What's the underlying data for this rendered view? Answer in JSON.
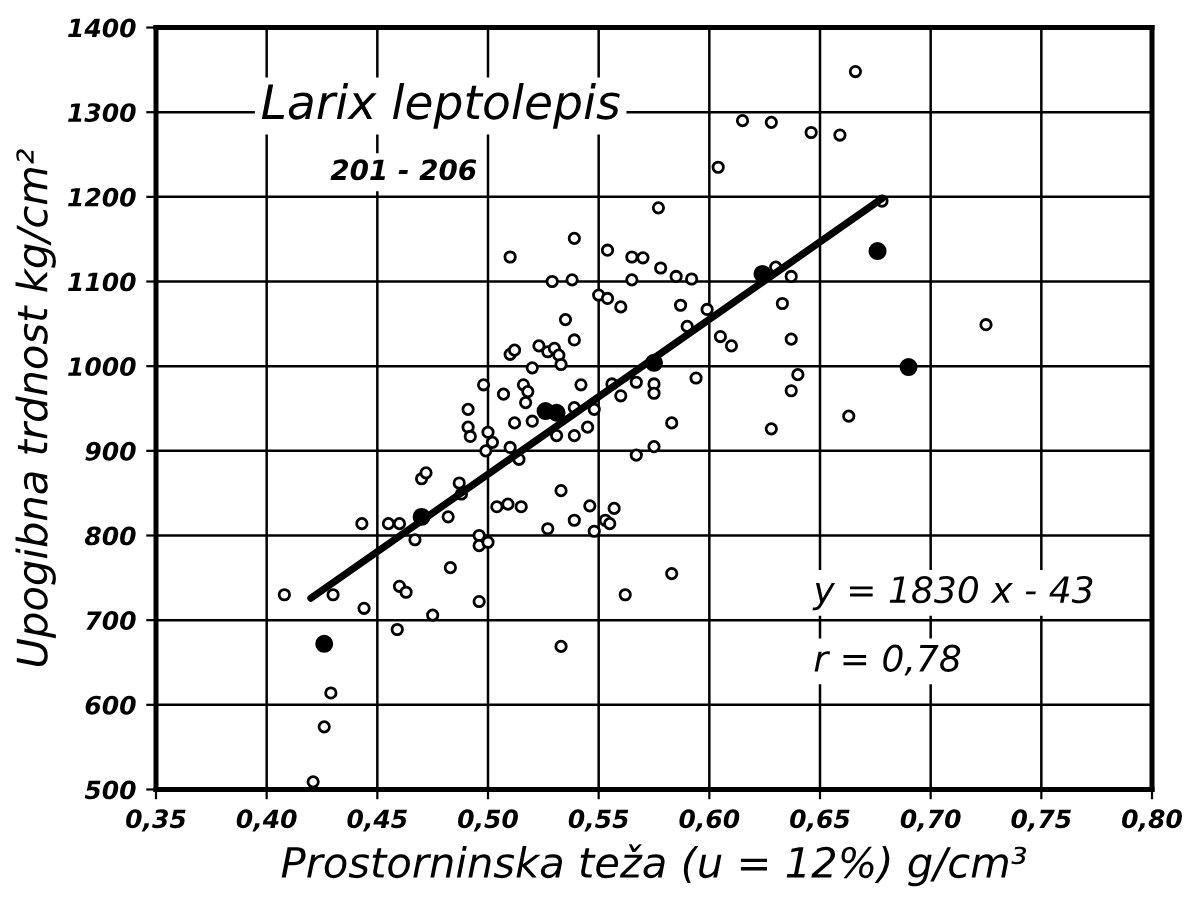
{
  "chart_data": {
    "type": "scatter",
    "xlabel": "Prostorninska teža (u = 12%) g/cm³",
    "ylabel": "Upogibna trdnost kg/cm²",
    "annotations": [
      "Larix leptolepis",
      "201 - 206",
      "y = 1830 x - 43",
      "r = 0,78"
    ],
    "xlim": [
      0.35,
      0.8
    ],
    "ylim": [
      500,
      1400
    ],
    "xticks": [
      {
        "value": 0.35,
        "label": "0,35"
      },
      {
        "value": 0.4,
        "label": "0,40"
      },
      {
        "value": 0.45,
        "label": "0,45"
      },
      {
        "value": 0.5,
        "label": "0,50"
      },
      {
        "value": 0.55,
        "label": "0,55"
      },
      {
        "value": 0.6,
        "label": "0,60"
      },
      {
        "value": 0.65,
        "label": "0,65"
      },
      {
        "value": 0.7,
        "label": "0,70"
      },
      {
        "value": 0.75,
        "label": "0,75"
      },
      {
        "value": 0.8,
        "label": "0,80"
      }
    ],
    "yticks": [
      500,
      600,
      700,
      800,
      900,
      1000,
      1100,
      1200,
      1300,
      1400
    ],
    "grid": true,
    "series": [
      {
        "marker": "circle",
        "color": "#ffffff",
        "x": [
          0.51,
          0.539,
          0.529,
          0.538,
          0.535,
          0.539,
          0.523,
          0.527,
          0.53,
          0.532,
          0.533,
          0.51,
          0.512,
          0.52,
          0.498,
          0.507,
          0.516,
          0.518,
          0.517,
          0.542,
          0.539,
          0.545,
          0.539,
          0.531,
          0.52,
          0.512,
          0.491,
          0.491,
          0.492,
          0.5,
          0.502,
          0.499,
          0.51,
          0.514,
          0.47,
          0.472,
          0.487,
          0.488,
          0.504,
          0.509,
          0.515,
          0.533,
          0.546,
          0.443,
          0.455,
          0.46,
          0.467,
          0.482,
          0.496,
          0.496,
          0.5,
          0.527,
          0.539,
          0.548,
          0.553,
          0.408,
          0.43,
          0.444,
          0.46,
          0.463,
          0.483,
          0.475,
          0.496,
          0.459,
          0.429,
          0.426,
          0.421,
          0.533,
          0.666,
          0.615,
          0.628,
          0.646,
          0.659,
          0.604,
          0.577,
          0.678,
          0.554,
          0.565,
          0.57,
          0.578,
          0.585,
          0.592,
          0.565,
          0.63,
          0.637,
          0.55,
          0.554,
          0.56,
          0.587,
          0.599,
          0.633,
          0.725,
          0.59,
          0.605,
          0.61,
          0.637,
          0.594,
          0.64,
          0.637,
          0.556,
          0.56,
          0.567,
          0.575,
          0.575,
          0.583,
          0.628,
          0.663,
          0.548,
          0.567,
          0.575,
          0.557,
          0.555,
          0.562,
          0.583
        ],
        "values": [
          1129,
          1151,
          1100,
          1102,
          1055,
          1031,
          1024,
          1017,
          1021,
          1013,
          1002,
          1014,
          1019,
          998,
          978,
          967,
          978,
          970,
          957,
          978,
          951,
          928,
          918,
          918,
          935,
          933,
          949,
          928,
          917,
          922,
          910,
          900,
          904,
          890,
          867,
          874,
          862,
          849,
          834,
          837,
          834,
          853,
          835,
          814,
          814,
          814,
          795,
          822,
          800,
          788,
          792,
          808,
          818,
          805,
          818,
          730,
          730,
          714,
          740,
          733,
          762,
          706,
          722,
          689,
          614,
          574,
          509,
          669,
          1348,
          1290,
          1288,
          1276,
          1273,
          1235,
          1187,
          1195,
          1137,
          1129,
          1128,
          1116,
          1106,
          1103,
          1102,
          1117,
          1106,
          1084,
          1080,
          1070,
          1072,
          1067,
          1074,
          1049,
          1047,
          1035,
          1024,
          1032,
          986,
          990,
          971,
          979,
          965,
          981,
          979,
          968,
          933,
          926,
          941,
          949,
          895,
          905,
          832,
          814,
          730,
          755
        ]
      },
      {
        "marker": "circle",
        "color": "#000000",
        "x": [
          0.526,
          0.531,
          0.47,
          0.426,
          0.676,
          0.624,
          0.575,
          0.69
        ],
        "values": [
          947,
          945,
          822,
          672,
          1136,
          1109,
          1004,
          999
        ]
      },
      {
        "type": "line",
        "marker": "none",
        "color": "#000000",
        "x": [
          0.42,
          0.678
        ],
        "values": [
          726,
          1198
        ]
      }
    ]
  }
}
